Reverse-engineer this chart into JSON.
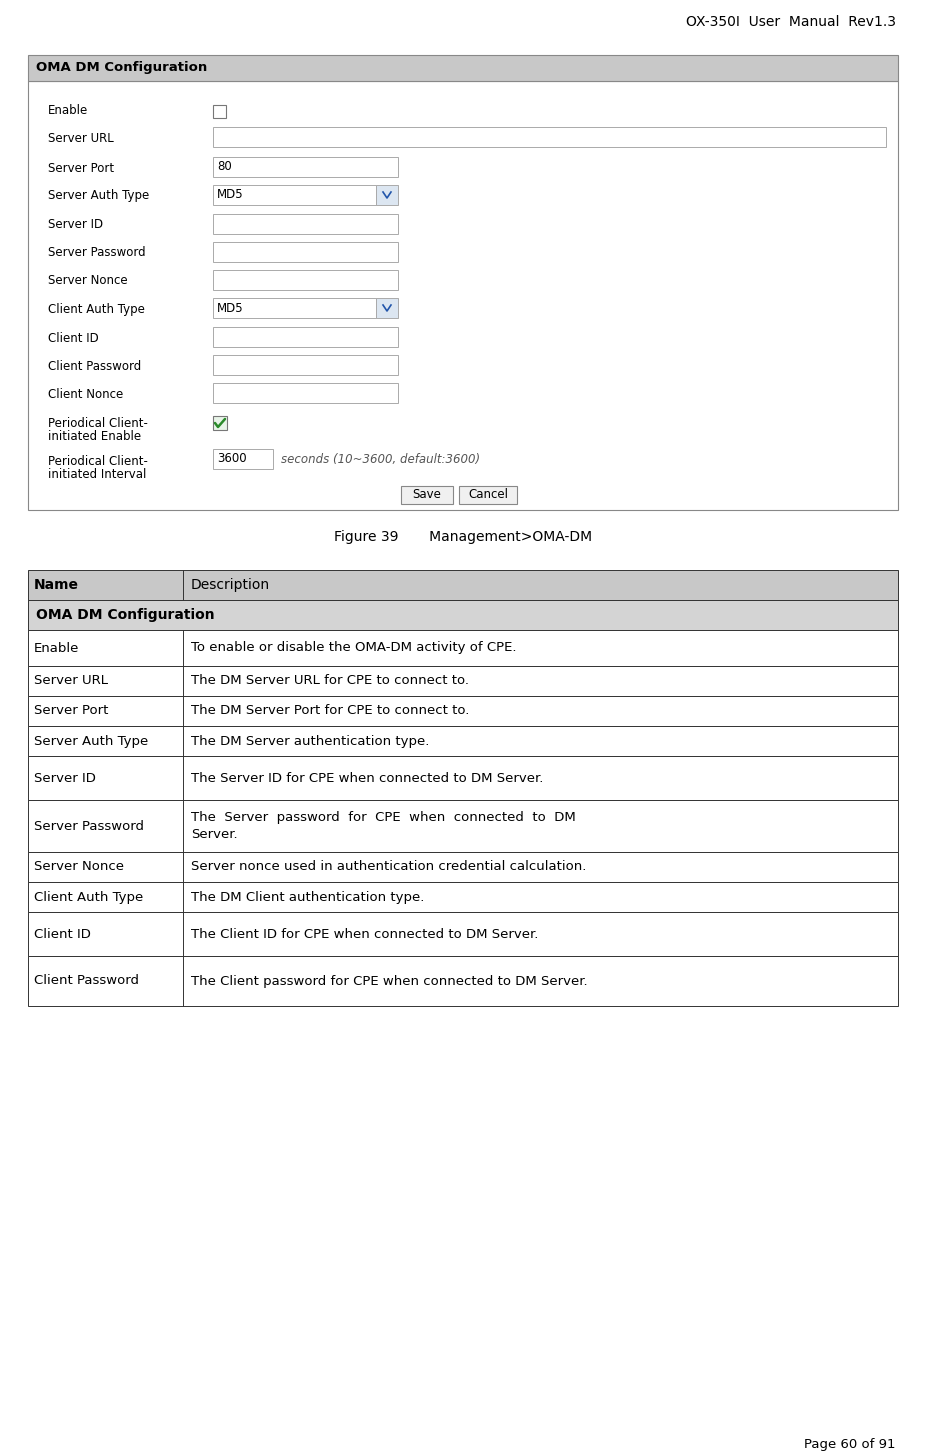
{
  "title_header": "OX-350I  User  Manual  Rev1.3",
  "footer": "Page 60 of 91",
  "figure_caption": "Figure 39       Management>OMA-DM",
  "form_title": "OMA DM Configuration",
  "bg_color": "#ffffff",
  "form_border": "#888888",
  "form_header_bg": "#c8c8c8",
  "form_bg": "#ffffff",
  "table_header_bg": "#c8c8c8",
  "table_section_bg": "#d4d4d4",
  "table_row_bg": "#ffffff",
  "text_color": "#000000",
  "border_color": "#333333",
  "dropdown_bg": "#dce6f1",
  "fields": [
    {
      "label": "Enable",
      "type": "checkbox",
      "value": "",
      "yt": 100
    },
    {
      "label": "Server URL",
      "type": "textbox_wide",
      "value": "",
      "yt": 128
    },
    {
      "label": "Server Port",
      "type": "textbox",
      "value": "80",
      "yt": 158
    },
    {
      "label": "Server Auth Type",
      "type": "dropdown",
      "value": "MD5",
      "yt": 186
    },
    {
      "label": "Server ID",
      "type": "textbox",
      "value": "",
      "yt": 215
    },
    {
      "label": "Server Password",
      "type": "textbox",
      "value": "",
      "yt": 243
    },
    {
      "label": "Server Nonce",
      "type": "textbox",
      "value": "",
      "yt": 271
    },
    {
      "label": "Client Auth Type",
      "type": "dropdown",
      "value": "MD5",
      "yt": 299
    },
    {
      "label": "Client ID",
      "type": "textbox",
      "value": "",
      "yt": 328
    },
    {
      "label": "Client Password",
      "type": "textbox",
      "value": "",
      "yt": 356
    },
    {
      "label": "Client Nonce",
      "type": "textbox",
      "value": "",
      "yt": 384
    },
    {
      "label": "Periodical Client-\ninitiated Enable",
      "type": "checkbox_checked",
      "value": "",
      "yt": 412
    },
    {
      "label": "Periodical Client-\ninitiated Interval",
      "type": "textbox_interval",
      "value": "3600",
      "yt": 450
    }
  ],
  "table_rows": [
    {
      "name": "Name",
      "desc": "Description",
      "type": "header",
      "rh": 30
    },
    {
      "name": "OMA DM Configuration",
      "desc": "",
      "type": "section",
      "rh": 30
    },
    {
      "name": "Enable",
      "desc": "To enable or disable the OMA-DM activity of CPE.",
      "type": "row",
      "rh": 36
    },
    {
      "name": "Server URL",
      "desc": "The DM Server URL for CPE to connect to.",
      "type": "row",
      "rh": 30
    },
    {
      "name": "Server Port",
      "desc": "The DM Server Port for CPE to connect to.",
      "type": "row",
      "rh": 30
    },
    {
      "name": "Server Auth Type",
      "desc": "The DM Server authentication type.",
      "type": "row",
      "rh": 30
    },
    {
      "name": "Server ID",
      "desc": "The Server ID for CPE when connected to DM Server.",
      "type": "row",
      "rh": 44
    },
    {
      "name": "Server Password",
      "desc": "The  Server  password  for  CPE  when  connected  to  DM\nServer.",
      "type": "row",
      "rh": 52
    },
    {
      "name": "Server Nonce",
      "desc": "Server nonce used in authentication credential calculation.",
      "type": "row",
      "rh": 30
    },
    {
      "name": "Client Auth Type",
      "desc": "The DM Client authentication type.",
      "type": "row",
      "rh": 30
    },
    {
      "name": "Client ID",
      "desc": "The Client ID for CPE when connected to DM Server.",
      "type": "row",
      "rh": 44
    },
    {
      "name": "Client Password",
      "desc": "The Client password for CPE when connected to DM Server.",
      "type": "row",
      "rh": 50
    }
  ]
}
